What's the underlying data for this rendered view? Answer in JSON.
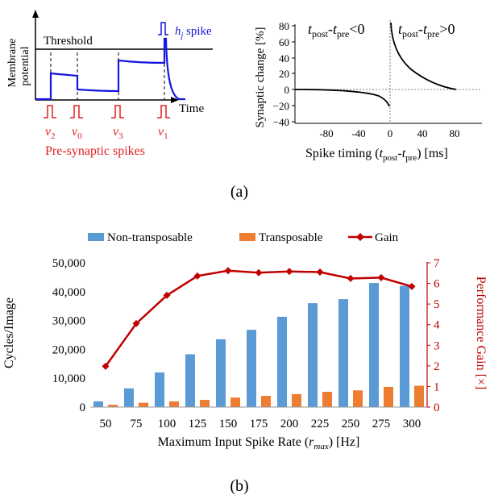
{
  "panel_a": {
    "caption": "(a)",
    "membrane": {
      "ylabel_line1": "Membrane",
      "ylabel_line2": "potential",
      "threshold_label": "Threshold",
      "spike_label_h": "h",
      "spike_label_j": "j",
      "spike_label_rest": " spike",
      "time_label": "Time",
      "presyn_label": "Pre-synaptic spikes",
      "spikes": [
        {
          "base": "v",
          "sub": "2"
        },
        {
          "base": "v",
          "sub": "0"
        },
        {
          "base": "v",
          "sub": "3"
        },
        {
          "base": "v",
          "sub": "1"
        }
      ],
      "colors": {
        "trace": "#1515e0",
        "presyn": "#e02020",
        "axis": "#000000"
      }
    },
    "stdp": {
      "ylabel": "Synaptic change [%]",
      "xlabel_pre": "Spike timing (",
      "xlabel_t1": "t",
      "xlabel_s1": "post",
      "xlabel_dash": "-",
      "xlabel_t2": "t",
      "xlabel_s2": "pre",
      "xlabel_post": ") [ms]",
      "yticks": [
        "80",
        "60",
        "40",
        "20",
        "0",
        "−20",
        "−40"
      ],
      "xticks": [
        "-80",
        "-40",
        "0",
        "40",
        "80"
      ],
      "region_left": {
        "t1": "t",
        "s1": "post",
        "dash": "-",
        "t2": "t",
        "s2": "pre",
        "rel": "<0"
      },
      "region_right": {
        "t1": "t",
        "s1": "post",
        "dash": "-",
        "t2": "t",
        "s2": "pre",
        "rel": ">0"
      }
    }
  },
  "chart_data": {
    "type": "bar",
    "caption": "(b)",
    "categories": [
      "50",
      "75",
      "100",
      "125",
      "150",
      "175",
      "200",
      "225",
      "250",
      "275",
      "300"
    ],
    "series": [
      {
        "name": "Non-transposable",
        "values": [
          2000,
          6500,
          12000,
          18300,
          23500,
          26800,
          31300,
          36000,
          37400,
          43000,
          42000
        ],
        "color": "#5b9bd5",
        "axis": "left"
      },
      {
        "name": "Transposable",
        "values": [
          800,
          1500,
          2000,
          2500,
          3300,
          3900,
          4500,
          5300,
          5800,
          7000,
          7400
        ],
        "color": "#ed7d31",
        "axis": "left"
      },
      {
        "name": "Gain",
        "values": [
          1.98,
          4.05,
          5.42,
          6.36,
          6.62,
          6.52,
          6.58,
          6.55,
          6.24,
          6.28,
          5.85
        ],
        "color": "#c00000",
        "axis": "right",
        "kind": "line"
      }
    ],
    "xlabel_main": "Maximum Input Spike Rate (",
    "xlabel_var": "r",
    "xlabel_sub": "max",
    "xlabel_unit": ") [Hz]",
    "ylabel_left": "Cycles/Image",
    "ylabel_right": "Performance Gain [×]",
    "ylim_left": [
      0,
      50000
    ],
    "ylim_right": [
      0,
      7
    ],
    "yticks_left": [
      "0",
      "10,000",
      "20,000",
      "30,000",
      "40,000",
      "50,000"
    ],
    "yticks_right": [
      "0",
      "1",
      "2",
      "3",
      "4",
      "5",
      "6",
      "7"
    ],
    "grid": false,
    "legend_position": "top"
  }
}
